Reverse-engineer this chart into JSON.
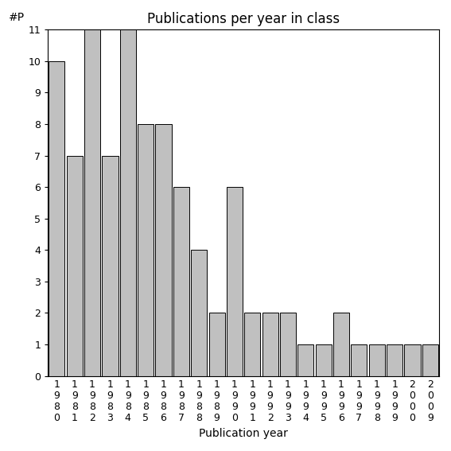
{
  "title": "Publications per year in class",
  "xlabel": "Publication year",
  "ylabel": "#P",
  "categories": [
    "1980",
    "1981",
    "1982",
    "1983",
    "1984",
    "1985",
    "1986",
    "1987",
    "1988",
    "1989",
    "1990",
    "1991",
    "1992",
    "1993",
    "1994",
    "1995",
    "1996",
    "1997",
    "1998",
    "1999",
    "2000",
    "2009"
  ],
  "values": [
    10,
    7,
    11,
    7,
    11,
    8,
    8,
    6,
    4,
    2,
    6,
    2,
    2,
    2,
    1,
    1,
    2,
    1,
    1,
    1,
    1,
    1
  ],
  "bar_color": "#c0c0c0",
  "bar_edge_color": "#000000",
  "ylim": [
    0,
    11
  ],
  "yticks": [
    0,
    1,
    2,
    3,
    4,
    5,
    6,
    7,
    8,
    9,
    10,
    11
  ],
  "background_color": "#ffffff",
  "title_fontsize": 12,
  "label_fontsize": 10,
  "tick_fontsize": 9
}
